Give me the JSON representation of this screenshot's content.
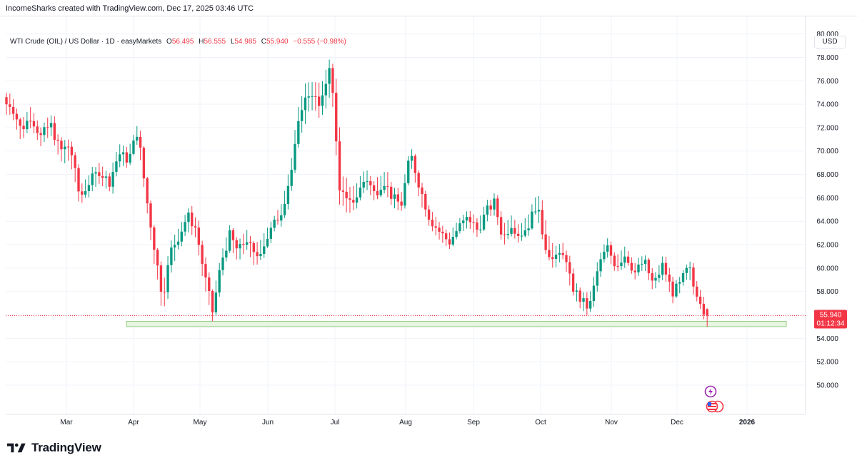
{
  "attribution": "IncomeSharks created with TradingView.com, Dec 17, 2025 03:46 UTC",
  "legend": {
    "symbol": "WTI Crude (OIL) / US Dollar · 1D · easyMarkets",
    "open_label": "O",
    "open": "56.495",
    "high_label": "H",
    "high": "56.555",
    "low_label": "L",
    "low": "54.985",
    "close_label": "C",
    "close": "55.940",
    "change": "−0.555 (−0.98%)"
  },
  "currency": "USD",
  "price_badge": {
    "price": "55.940",
    "countdown": "01:12:34"
  },
  "footer": {
    "logo_text": "TradingView"
  },
  "colors": {
    "up": "#089981",
    "down": "#f23645",
    "zone_fill": "#e8f5e2",
    "zone_border": "#8fce7f",
    "grid": "#f0f3fa"
  },
  "icons": [
    "lightning-event-icon",
    "us-flag-event-icon"
  ],
  "chart_data": {
    "type": "candlestick",
    "y_axis": {
      "min": 47.5,
      "max": 81.5,
      "ticks": [
        "80.000",
        "78.000",
        "76.000",
        "74.000",
        "72.000",
        "70.000",
        "68.000",
        "66.000",
        "64.000",
        "62.000",
        "60.000",
        "58.000",
        "56.000",
        "54.000",
        "52.000",
        "50.000"
      ]
    },
    "x_axis_labels": [
      "Mar",
      "Apr",
      "May",
      "Jun",
      "Jul",
      "Aug",
      "Sep",
      "Oct",
      "Nov",
      "Dec",
      "2026"
    ],
    "support_zone": {
      "low": 55.0,
      "high": 55.45,
      "start_month": "Apr",
      "end": "2026"
    },
    "last_price_line": 55.94,
    "anchors": [
      {
        "m": "Mar",
        "c": 74.0,
        "h": 74.9,
        "l": 73.1
      },
      {
        "m": "Mar",
        "c": 71.8,
        "h": 72.6,
        "l": 70.8
      },
      {
        "m": "Mar",
        "c": 73.0,
        "h": 73.8,
        "l": 72.0
      },
      {
        "m": "Mar",
        "c": 71.2,
        "h": 72.0,
        "l": 70.4
      },
      {
        "m": "Mar",
        "c": 72.3,
        "h": 73.2,
        "l": 71.4
      },
      {
        "m": "Mar",
        "c": 70.0,
        "h": 70.9,
        "l": 69.2
      },
      {
        "m": "Mar",
        "c": 70.5,
        "h": 71.0,
        "l": 68.5
      },
      {
        "m": "Mar",
        "c": 66.0,
        "h": 67.0,
        "l": 65.3
      },
      {
        "m": "Mar",
        "c": 67.4,
        "h": 68.0,
        "l": 66.5
      },
      {
        "m": "Mar",
        "c": 68.3,
        "h": 69.0,
        "l": 67.2
      },
      {
        "m": "Mar",
        "c": 67.3,
        "h": 68.0,
        "l": 66.6
      },
      {
        "m": "Mar",
        "c": 69.8,
        "h": 70.6,
        "l": 68.9
      },
      {
        "m": "Mar",
        "c": 69.2,
        "h": 70.3,
        "l": 68.5
      },
      {
        "m": "Apr",
        "c": 71.8,
        "h": 72.3,
        "l": 71.0
      },
      {
        "m": "Apr",
        "c": 66.2,
        "h": 67.0,
        "l": 65.5
      },
      {
        "m": "Apr",
        "c": 61.8,
        "h": 62.8,
        "l": 60.0
      },
      {
        "m": "Apr",
        "c": 57.5,
        "h": 58.8,
        "l": 55.0
      },
      {
        "m": "Apr",
        "c": 61.5,
        "h": 62.3,
        "l": 59.5
      },
      {
        "m": "Apr",
        "c": 62.8,
        "h": 63.5,
        "l": 61.9
      },
      {
        "m": "Apr",
        "c": 64.5,
        "h": 65.0,
        "l": 63.1
      },
      {
        "m": "Apr",
        "c": 63.4,
        "h": 64.3,
        "l": 62.6
      },
      {
        "m": "May",
        "c": 59.5,
        "h": 60.2,
        "l": 58.3
      },
      {
        "m": "May",
        "c": 56.2,
        "h": 57.5,
        "l": 55.4
      },
      {
        "m": "May",
        "c": 60.5,
        "h": 61.2,
        "l": 59.4
      },
      {
        "m": "May",
        "c": 62.8,
        "h": 63.6,
        "l": 61.8
      },
      {
        "m": "May",
        "c": 61.4,
        "h": 62.3,
        "l": 60.5
      },
      {
        "m": "May",
        "c": 62.5,
        "h": 63.3,
        "l": 61.6
      },
      {
        "m": "May",
        "c": 60.8,
        "h": 62.0,
        "l": 60.0
      },
      {
        "m": "May",
        "c": 62.0,
        "h": 62.9,
        "l": 61.2
      },
      {
        "m": "Jun",
        "c": 63.5,
        "h": 64.2,
        "l": 62.9
      },
      {
        "m": "Jun",
        "c": 65.0,
        "h": 65.6,
        "l": 64.4
      },
      {
        "m": "Jun",
        "c": 68.5,
        "h": 69.5,
        "l": 67.8
      },
      {
        "m": "Jun",
        "c": 73.8,
        "h": 77.6,
        "l": 71.5
      },
      {
        "m": "Jun",
        "c": 75.2,
        "h": 76.6,
        "l": 73.0
      },
      {
        "m": "Jun",
        "c": 73.5,
        "h": 75.8,
        "l": 72.8
      },
      {
        "m": "Jun",
        "c": 77.8,
        "h": 78.0,
        "l": 74.3
      },
      {
        "m": "Jul",
        "c": 67.0,
        "h": 75.5,
        "l": 64.1
      },
      {
        "m": "Jul",
        "c": 65.3,
        "h": 66.8,
        "l": 64.6
      },
      {
        "m": "Jul",
        "c": 66.2,
        "h": 67.5,
        "l": 65.2
      },
      {
        "m": "Jul",
        "c": 67.8,
        "h": 68.5,
        "l": 66.8
      },
      {
        "m": "Jul",
        "c": 66.3,
        "h": 67.3,
        "l": 65.7
      },
      {
        "m": "Jul",
        "c": 67.5,
        "h": 69.6,
        "l": 66.8
      },
      {
        "m": "Jul",
        "c": 66.0,
        "h": 67.0,
        "l": 65.2
      },
      {
        "m": "Jul",
        "c": 65.4,
        "h": 66.4,
        "l": 64.8
      },
      {
        "m": "Aug",
        "c": 69.8,
        "h": 70.5,
        "l": 68.9
      },
      {
        "m": "Aug",
        "c": 66.8,
        "h": 67.8,
        "l": 65.6
      },
      {
        "m": "Aug",
        "c": 64.2,
        "h": 65.1,
        "l": 63.4
      },
      {
        "m": "Aug",
        "c": 63.1,
        "h": 63.9,
        "l": 62.4
      },
      {
        "m": "Aug",
        "c": 62.2,
        "h": 63.0,
        "l": 61.6
      },
      {
        "m": "Aug",
        "c": 63.5,
        "h": 64.2,
        "l": 62.9
      },
      {
        "m": "Aug",
        "c": 64.3,
        "h": 65.0,
        "l": 63.5
      },
      {
        "m": "Sep",
        "c": 63.2,
        "h": 64.2,
        "l": 62.6
      },
      {
        "m": "Sep",
        "c": 64.8,
        "h": 65.6,
        "l": 64.0
      },
      {
        "m": "Sep",
        "c": 65.6,
        "h": 66.0,
        "l": 64.8
      },
      {
        "m": "Sep",
        "c": 62.5,
        "h": 63.7,
        "l": 61.8
      },
      {
        "m": "Sep",
        "c": 63.8,
        "h": 64.5,
        "l": 62.9
      },
      {
        "m": "Sep",
        "c": 62.8,
        "h": 63.6,
        "l": 62.2
      },
      {
        "m": "Sep",
        "c": 63.6,
        "h": 64.6,
        "l": 63.0
      },
      {
        "m": "Sep",
        "c": 65.5,
        "h": 66.4,
        "l": 64.8
      },
      {
        "m": "Oct",
        "c": 62.0,
        "h": 65.5,
        "l": 61.4
      },
      {
        "m": "Oct",
        "c": 60.5,
        "h": 61.8,
        "l": 59.8
      },
      {
        "m": "Oct",
        "c": 61.5,
        "h": 62.2,
        "l": 60.9
      },
      {
        "m": "Oct",
        "c": 58.5,
        "h": 59.5,
        "l": 57.9
      },
      {
        "m": "Oct",
        "c": 57.3,
        "h": 58.1,
        "l": 56.6
      },
      {
        "m": "Oct",
        "c": 56.5,
        "h": 57.6,
        "l": 55.8
      },
      {
        "m": "Oct",
        "c": 60.0,
        "h": 60.8,
        "l": 59.3
      },
      {
        "m": "Oct",
        "c": 61.8,
        "h": 62.6,
        "l": 61.0
      },
      {
        "m": "Nov",
        "c": 60.2,
        "h": 61.0,
        "l": 59.5
      },
      {
        "m": "Nov",
        "c": 61.2,
        "h": 61.9,
        "l": 60.7
      },
      {
        "m": "Nov",
        "c": 59.6,
        "h": 60.4,
        "l": 59.0
      },
      {
        "m": "Nov",
        "c": 60.6,
        "h": 61.2,
        "l": 60.0
      },
      {
        "m": "Nov",
        "c": 58.5,
        "h": 59.3,
        "l": 57.9
      },
      {
        "m": "Nov",
        "c": 60.3,
        "h": 60.9,
        "l": 59.6
      },
      {
        "m": "Nov",
        "c": 57.9,
        "h": 58.7,
        "l": 57.2
      },
      {
        "m": "Dec",
        "c": 58.5,
        "h": 59.2,
        "l": 57.8
      },
      {
        "m": "Dec",
        "c": 59.4,
        "h": 60.0,
        "l": 58.7
      },
      {
        "m": "Dec",
        "c": 60.1,
        "h": 60.6,
        "l": 59.3
      },
      {
        "m": "Dec",
        "c": 58.3,
        "h": 59.0,
        "l": 57.6
      },
      {
        "m": "Dec",
        "c": 57.7,
        "h": 58.4,
        "l": 56.9
      },
      {
        "m": "Dec",
        "c": 56.5,
        "h": 57.6,
        "l": 55.9
      },
      {
        "m": "Dec",
        "c": 55.94,
        "h": 56.555,
        "l": 54.985
      }
    ]
  }
}
